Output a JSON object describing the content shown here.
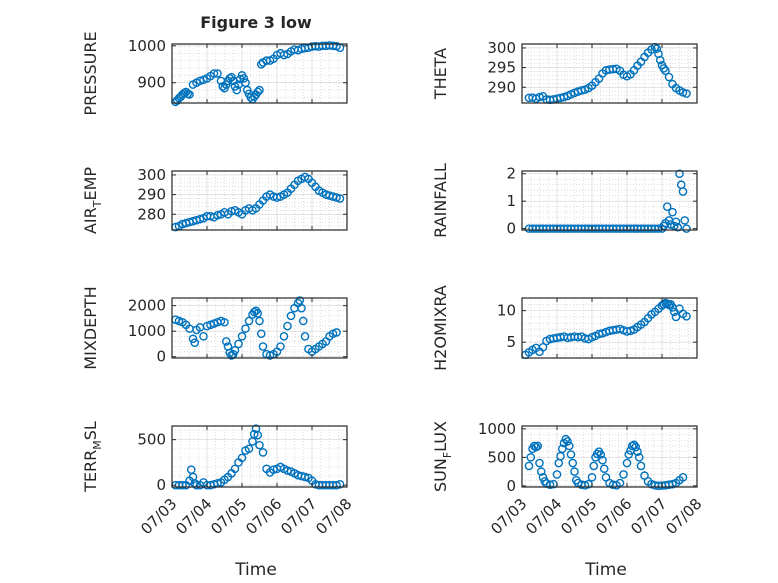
{
  "figure": {
    "title": "Figure 3 low",
    "x_axis_label": "Time",
    "x_tick_labels": [
      "07/03",
      "07/04",
      "07/05",
      "07/06",
      "07/07",
      "07/08"
    ]
  },
  "chart_data": [
    {
      "id": "pressure",
      "type": "scatter",
      "ylabel": "PRESSURE",
      "ylabel_sub": "",
      "title": "Figure 3 low",
      "xlabel": "",
      "xlim": [
        0,
        5
      ],
      "ylim": [
        845,
        1005
      ],
      "yticks": [
        900,
        1000
      ],
      "ytick_labels": [
        "900",
        "1000"
      ],
      "grid": true,
      "x": [
        0.1,
        0.15,
        0.2,
        0.25,
        0.3,
        0.35,
        0.4,
        0.45,
        0.5,
        0.6,
        0.7,
        0.8,
        0.9,
        1.0,
        1.1,
        1.2,
        1.3,
        1.4,
        1.45,
        1.5,
        1.55,
        1.6,
        1.65,
        1.7,
        1.75,
        1.8,
        1.85,
        1.9,
        1.95,
        2.0,
        2.05,
        2.1,
        2.15,
        2.2,
        2.25,
        2.3,
        2.35,
        2.4,
        2.45,
        2.5,
        2.55,
        2.6,
        2.7,
        2.8,
        2.9,
        3.0,
        3.1,
        3.2,
        3.3,
        3.4,
        3.5,
        3.6,
        3.7,
        3.8,
        3.9,
        4.0,
        4.1,
        4.2,
        4.3,
        4.4,
        4.5,
        4.6,
        4.7,
        4.8
      ],
      "y": [
        848,
        852,
        858,
        862,
        868,
        872,
        875,
        870,
        868,
        895,
        900,
        905,
        908,
        912,
        918,
        925,
        925,
        905,
        890,
        885,
        895,
        905,
        912,
        915,
        905,
        890,
        880,
        895,
        910,
        920,
        912,
        900,
        880,
        870,
        860,
        855,
        862,
        868,
        875,
        880,
        950,
        955,
        960,
        960,
        965,
        975,
        980,
        975,
        978,
        985,
        990,
        988,
        992,
        994,
        995,
        998,
        999,
        998,
        1000,
        1000,
        1001,
        1000,
        999,
        995
      ]
    },
    {
      "id": "theta",
      "type": "scatter",
      "ylabel": "THETA",
      "ylabel_sub": "",
      "title": "",
      "xlabel": "",
      "xlim": [
        0,
        5
      ],
      "ylim": [
        286,
        301
      ],
      "yticks": [
        290,
        295,
        300
      ],
      "ytick_labels": [
        "290",
        "295",
        "300"
      ],
      "grid": true,
      "x": [
        0.2,
        0.3,
        0.4,
        0.5,
        0.6,
        0.7,
        0.8,
        0.9,
        1.0,
        1.1,
        1.2,
        1.3,
        1.4,
        1.5,
        1.6,
        1.7,
        1.8,
        1.9,
        2.0,
        2.1,
        2.2,
        2.3,
        2.4,
        2.5,
        2.6,
        2.7,
        2.8,
        2.9,
        3.0,
        3.1,
        3.2,
        3.3,
        3.4,
        3.5,
        3.6,
        3.7,
        3.8,
        3.85,
        3.9,
        3.95,
        4.0,
        4.05,
        4.1,
        4.2,
        4.3,
        4.4,
        4.5,
        4.6,
        4.7
      ],
      "y": [
        287.3,
        287.4,
        287.1,
        287.5,
        287.7,
        286.9,
        286.8,
        286.9,
        287.1,
        287.3,
        287.5,
        287.8,
        288.2,
        288.6,
        288.9,
        289.2,
        289.4,
        289.8,
        290.4,
        291.3,
        292.2,
        293.5,
        294.3,
        294.5,
        294.6,
        294.7,
        294.2,
        293.2,
        292.8,
        293.3,
        294.3,
        295.5,
        296.5,
        297.7,
        298.8,
        299.6,
        300.2,
        299.8,
        298.5,
        296.9,
        295.6,
        294.8,
        294.2,
        292.6,
        290.8,
        289.8,
        289.2,
        288.7,
        288.4
      ]
    },
    {
      "id": "air_temp",
      "type": "scatter",
      "ylabel": "AIR",
      "ylabel_sub": "T",
      "ylabel_suffix": "EMP",
      "title": "",
      "xlabel": "",
      "xlim": [
        0,
        5
      ],
      "ylim": [
        272,
        302
      ],
      "yticks": [
        280,
        290,
        300
      ],
      "ytick_labels": [
        "280",
        "290",
        "300"
      ],
      "grid": true,
      "x": [
        0.1,
        0.2,
        0.3,
        0.4,
        0.5,
        0.6,
        0.7,
        0.8,
        0.9,
        1.0,
        1.1,
        1.2,
        1.3,
        1.4,
        1.5,
        1.6,
        1.7,
        1.8,
        1.9,
        2.0,
        2.1,
        2.2,
        2.3,
        2.4,
        2.5,
        2.6,
        2.7,
        2.8,
        2.9,
        3.0,
        3.1,
        3.2,
        3.3,
        3.4,
        3.5,
        3.6,
        3.7,
        3.8,
        3.9,
        4.0,
        4.1,
        4.2,
        4.3,
        4.4,
        4.5,
        4.6,
        4.7,
        4.8
      ],
      "y": [
        273.5,
        274,
        275,
        275.5,
        276,
        276.5,
        277,
        277.5,
        278,
        279,
        279,
        278.5,
        279.5,
        280,
        281,
        280,
        281.5,
        282,
        281,
        280,
        282,
        283,
        282,
        283,
        285,
        287,
        289,
        290,
        289,
        288.5,
        289,
        290,
        291,
        293,
        295,
        297,
        298,
        299,
        298,
        296,
        294,
        292,
        291,
        290,
        289.5,
        289,
        288.5,
        288
      ]
    },
    {
      "id": "rainfall",
      "type": "scatter",
      "ylabel": "RAINFALL",
      "ylabel_sub": "",
      "title": "",
      "xlabel": "",
      "xlim": [
        0,
        5
      ],
      "ylim": [
        -0.05,
        2.1
      ],
      "yticks": [
        0,
        1,
        2
      ],
      "ytick_labels": [
        "0",
        "1",
        "2"
      ],
      "grid": true,
      "x": [
        0.2,
        0.3,
        0.4,
        0.5,
        0.6,
        0.7,
        0.8,
        0.9,
        1.0,
        1.1,
        1.2,
        1.3,
        1.4,
        1.5,
        1.6,
        1.7,
        1.8,
        1.9,
        2.0,
        2.1,
        2.2,
        2.3,
        2.4,
        2.5,
        2.6,
        2.7,
        2.8,
        2.9,
        3.0,
        3.1,
        3.2,
        3.3,
        3.4,
        3.5,
        3.6,
        3.7,
        3.8,
        3.9,
        4.0,
        4.05,
        4.1,
        4.15,
        4.2,
        4.25,
        4.3,
        4.35,
        4.4,
        4.45,
        4.5,
        4.55,
        4.6,
        4.65,
        4.7
      ],
      "y": [
        0,
        0,
        0,
        0,
        0,
        0,
        0,
        0,
        0,
        0,
        0,
        0,
        0,
        0,
        0,
        0,
        0,
        0,
        0,
        0,
        0,
        0,
        0,
        0,
        0,
        0,
        0,
        0,
        0,
        0,
        0,
        0,
        0,
        0,
        0,
        0,
        0,
        0,
        0,
        0.1,
        0.2,
        0.8,
        0.3,
        0.15,
        0.6,
        0.1,
        0.25,
        0.05,
        2.0,
        1.6,
        1.35,
        0.3,
        0.0
      ]
    },
    {
      "id": "mixdepth",
      "type": "scatter",
      "ylabel": "MIXDEPTH",
      "ylabel_sub": "",
      "title": "",
      "xlabel": "",
      "xlim": [
        0,
        5
      ],
      "ylim": [
        -50,
        2300
      ],
      "yticks": [
        0,
        1000,
        2000
      ],
      "ytick_labels": [
        "0",
        "1000",
        "2000"
      ],
      "grid": true,
      "x": [
        0.1,
        0.2,
        0.3,
        0.4,
        0.5,
        0.6,
        0.65,
        0.7,
        0.8,
        0.9,
        1.0,
        1.1,
        1.2,
        1.3,
        1.4,
        1.5,
        1.55,
        1.6,
        1.65,
        1.7,
        1.75,
        1.8,
        1.9,
        2.0,
        2.1,
        2.2,
        2.3,
        2.35,
        2.4,
        2.45,
        2.5,
        2.55,
        2.6,
        2.7,
        2.8,
        2.9,
        3.0,
        3.1,
        3.2,
        3.3,
        3.4,
        3.5,
        3.6,
        3.65,
        3.7,
        3.75,
        3.8,
        3.9,
        4.0,
        4.1,
        4.2,
        4.3,
        4.4,
        4.5,
        4.6,
        4.7
      ],
      "y": [
        1450,
        1400,
        1350,
        1250,
        1100,
        700,
        550,
        1050,
        1150,
        800,
        1200,
        1250,
        1300,
        1350,
        1400,
        1350,
        600,
        400,
        150,
        50,
        100,
        250,
        500,
        800,
        1100,
        1400,
        1650,
        1750,
        1800,
        1700,
        1400,
        900,
        400,
        100,
        50,
        100,
        200,
        400,
        800,
        1200,
        1600,
        1900,
        2100,
        2200,
        1900,
        1400,
        800,
        300,
        200,
        300,
        400,
        500,
        600,
        800,
        900,
        950
      ]
    },
    {
      "id": "h2omixra",
      "type": "scatter",
      "ylabel": "H2OMIXRA",
      "ylabel_sub": "",
      "title": "",
      "xlabel": "",
      "xlim": [
        0,
        5
      ],
      "ylim": [
        2.5,
        12
      ],
      "yticks": [
        5,
        10
      ],
      "ytick_labels": [
        "5",
        "10"
      ],
      "grid": true,
      "x": [
        0.1,
        0.2,
        0.3,
        0.4,
        0.5,
        0.6,
        0.7,
        0.8,
        0.9,
        1.0,
        1.1,
        1.2,
        1.3,
        1.4,
        1.5,
        1.6,
        1.7,
        1.8,
        1.9,
        2.0,
        2.1,
        2.2,
        2.3,
        2.4,
        2.5,
        2.6,
        2.7,
        2.8,
        2.9,
        3.0,
        3.1,
        3.2,
        3.3,
        3.4,
        3.5,
        3.6,
        3.7,
        3.8,
        3.9,
        4.0,
        4.05,
        4.1,
        4.15,
        4.2,
        4.25,
        4.3,
        4.35,
        4.4,
        4.5,
        4.6,
        4.7
      ],
      "y": [
        3.0,
        3.4,
        3.8,
        4.1,
        3.5,
        4.2,
        5.2,
        5.5,
        5.6,
        5.7,
        5.8,
        5.9,
        5.7,
        5.8,
        5.9,
        5.8,
        5.9,
        5.6,
        5.5,
        5.8,
        6.0,
        6.3,
        6.4,
        6.6,
        6.8,
        6.9,
        7.0,
        7.1,
        6.9,
        6.7,
        6.8,
        7.0,
        7.4,
        7.8,
        8.2,
        8.8,
        9.4,
        9.8,
        10.3,
        10.8,
        11.0,
        11.2,
        11.1,
        10.9,
        11.0,
        10.5,
        9.8,
        9.0,
        10.3,
        9.5,
        9.1
      ]
    },
    {
      "id": "terr_msl",
      "type": "scatter",
      "ylabel": "TERR",
      "ylabel_sub": "M",
      "ylabel_suffix": "SL",
      "title": "",
      "xlabel": "Time",
      "xlim": [
        0,
        5
      ],
      "ylim": [
        -20,
        650
      ],
      "yticks": [
        0,
        500
      ],
      "ytick_labels": [
        "0",
        "500"
      ],
      "grid": true,
      "x": [
        0.1,
        0.2,
        0.3,
        0.4,
        0.5,
        0.55,
        0.6,
        0.65,
        0.7,
        0.8,
        0.9,
        1.0,
        1.1,
        1.2,
        1.3,
        1.4,
        1.5,
        1.6,
        1.7,
        1.8,
        1.9,
        2.0,
        2.1,
        2.2,
        2.3,
        2.35,
        2.4,
        2.45,
        2.5,
        2.6,
        2.7,
        2.8,
        2.9,
        3.0,
        3.1,
        3.2,
        3.3,
        3.4,
        3.5,
        3.6,
        3.7,
        3.8,
        3.9,
        4.0,
        4.1,
        4.2,
        4.3,
        4.4,
        4.5,
        4.6,
        4.7,
        4.8
      ],
      "y": [
        0,
        0,
        0,
        0,
        50,
        170,
        90,
        20,
        0,
        0,
        30,
        0,
        0,
        10,
        20,
        30,
        60,
        90,
        130,
        180,
        250,
        300,
        380,
        400,
        480,
        560,
        620,
        550,
        440,
        360,
        180,
        140,
        170,
        180,
        200,
        180,
        160,
        150,
        130,
        110,
        100,
        90,
        80,
        50,
        10,
        0,
        0,
        0,
        0,
        0,
        0,
        10
      ]
    },
    {
      "id": "sun_flux",
      "type": "scatter",
      "ylabel": "SUN",
      "ylabel_sub": "F",
      "ylabel_suffix": "LUX",
      "title": "",
      "xlabel": "Time",
      "xlim": [
        0,
        5
      ],
      "ylim": [
        -20,
        1050
      ],
      "yticks": [
        0,
        500,
        1000
      ],
      "ytick_labels": [
        "0",
        "500",
        "1000"
      ],
      "grid": true,
      "x": [
        0.2,
        0.25,
        0.3,
        0.35,
        0.4,
        0.45,
        0.5,
        0.55,
        0.6,
        0.65,
        0.7,
        0.8,
        0.9,
        1.0,
        1.05,
        1.1,
        1.15,
        1.2,
        1.25,
        1.3,
        1.35,
        1.4,
        1.45,
        1.5,
        1.55,
        1.6,
        1.7,
        1.8,
        1.9,
        2.0,
        2.05,
        2.1,
        2.15,
        2.2,
        2.25,
        2.3,
        2.35,
        2.4,
        2.5,
        2.6,
        2.7,
        2.8,
        2.9,
        3.0,
        3.05,
        3.1,
        3.15,
        3.2,
        3.25,
        3.3,
        3.35,
        3.4,
        3.5,
        3.6,
        3.7,
        3.8,
        3.9,
        4.0,
        4.1,
        4.2,
        4.3,
        4.4,
        4.5,
        4.6
      ],
      "y": [
        350,
        500,
        650,
        700,
        680,
        700,
        400,
        250,
        150,
        80,
        40,
        20,
        30,
        200,
        400,
        520,
        650,
        750,
        820,
        780,
        700,
        550,
        400,
        250,
        100,
        50,
        20,
        10,
        30,
        150,
        350,
        500,
        560,
        600,
        550,
        450,
        300,
        150,
        50,
        20,
        10,
        50,
        200,
        400,
        550,
        620,
        700,
        720,
        680,
        600,
        500,
        350,
        180,
        80,
        30,
        10,
        0,
        5,
        10,
        20,
        30,
        50,
        100,
        150
      ]
    }
  ]
}
